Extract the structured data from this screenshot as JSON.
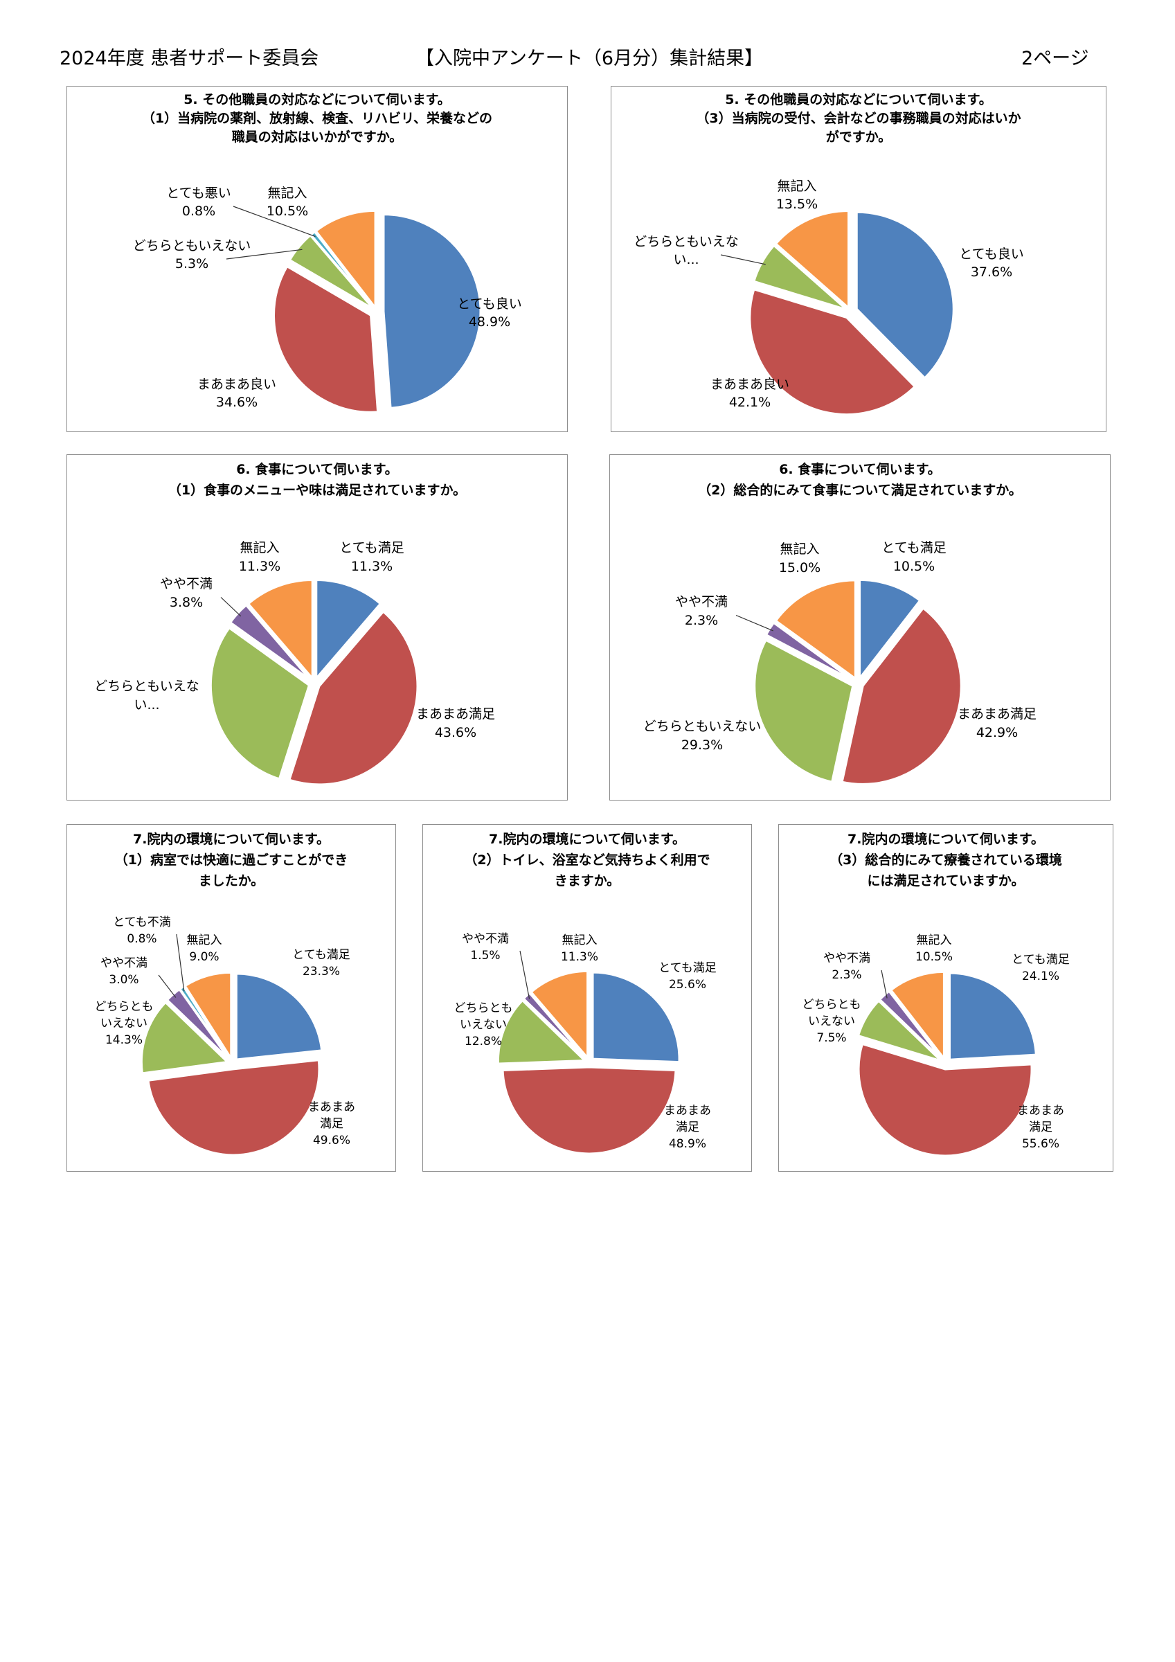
{
  "header": {
    "left": "2024年度 患者サポート委員会",
    "center": "【入院中アンケート（6月分）集計結果】",
    "right": "2ページ"
  },
  "colors": {
    "blue": "#4f81bd",
    "red": "#c0504d",
    "green": "#9bbb59",
    "purple": "#8064a2",
    "cyan": "#4bacc6",
    "orange": "#f79646"
  },
  "chart_data": [
    {
      "type": "pie",
      "title": "5. その他職員の対応などについて伺います。\n（1）当病院の薬剤、放射線、検査、リハビリ、栄養などの\n職員の対応はいかがですか。",
      "slices": [
        {
          "label": "とても良い",
          "value": 48.9,
          "display": "48.9%",
          "color": "blue"
        },
        {
          "label": "まあまあ良い",
          "value": 34.6,
          "display": "34.6%",
          "color": "red"
        },
        {
          "label": "どちらともいえない",
          "value": 5.3,
          "display": "5.3%",
          "color": "green"
        },
        {
          "label": "とても悪い",
          "value": 0.8,
          "display": "0.8%",
          "color": "cyan"
        },
        {
          "label": "無記入",
          "value": 10.5,
          "display": "10.5%",
          "color": "orange"
        }
      ]
    },
    {
      "type": "pie",
      "title": "5. その他職員の対応などについて伺います。\n（3）当病院の受付、会計などの事務職員の対応はいか\nがですか。",
      "slices": [
        {
          "label": "とても良い",
          "value": 37.6,
          "display": "37.6%",
          "color": "blue"
        },
        {
          "label": "まあまあ良い",
          "value": 42.1,
          "display": "42.1%",
          "color": "red"
        },
        {
          "label": "どちらともいえな\nい...",
          "value": 6.8,
          "display": "",
          "color": "green"
        },
        {
          "label": "無記入",
          "value": 13.5,
          "display": "13.5%",
          "color": "orange"
        }
      ]
    },
    {
      "type": "pie",
      "title": "6. 食事について伺います。\n（1）食事のメニューや味は満足されていますか。",
      "slices": [
        {
          "label": "とても満足",
          "value": 11.3,
          "display": "11.3%",
          "color": "blue"
        },
        {
          "label": "まあまあ満足",
          "value": 43.6,
          "display": "43.6%",
          "color": "red"
        },
        {
          "label": "どちらともいえな\nい...",
          "value": 30.0,
          "display": "",
          "color": "green"
        },
        {
          "label": "やや不満",
          "value": 3.8,
          "display": "3.8%",
          "color": "purple"
        },
        {
          "label": "無記入",
          "value": 11.3,
          "display": "11.3%",
          "color": "orange"
        }
      ]
    },
    {
      "type": "pie",
      "title": "6. 食事について伺います。\n（2）総合的にみて食事について満足されていますか。",
      "slices": [
        {
          "label": "とても満足",
          "value": 10.5,
          "display": "10.5%",
          "color": "blue"
        },
        {
          "label": "まあまあ満足",
          "value": 42.9,
          "display": "42.9%",
          "color": "red"
        },
        {
          "label": "どちらともいえない",
          "value": 29.3,
          "display": "29.3%",
          "color": "green"
        },
        {
          "label": "やや不満",
          "value": 2.3,
          "display": "2.3%",
          "color": "purple"
        },
        {
          "label": "無記入",
          "value": 15.0,
          "display": "15.0%",
          "color": "orange"
        }
      ]
    },
    {
      "type": "pie",
      "title": "7.院内の環境について伺います。\n（1）病室では快適に過ごすことができ\nましたか。",
      "slices": [
        {
          "label": "とても満足",
          "value": 23.3,
          "display": "23.3%",
          "color": "blue"
        },
        {
          "label": "まあまあ\n満足",
          "value": 49.6,
          "display": "49.6%",
          "color": "red"
        },
        {
          "label": "どちらとも\nいえない",
          "value": 14.3,
          "display": "14.3%",
          "color": "green"
        },
        {
          "label": "やや不満",
          "value": 3.0,
          "display": "3.0%",
          "color": "purple"
        },
        {
          "label": "とても不満",
          "value": 0.8,
          "display": "0.8%",
          "color": "cyan"
        },
        {
          "label": "無記入",
          "value": 9.0,
          "display": "9.0%",
          "color": "orange"
        }
      ]
    },
    {
      "type": "pie",
      "title": "7.院内の環境について伺います。\n（2）トイレ、浴室など気持ちよく利用で\nきますか。",
      "slices": [
        {
          "label": "とても満足",
          "value": 25.6,
          "display": "25.6%",
          "color": "blue"
        },
        {
          "label": "まあまあ\n満足",
          "value": 48.9,
          "display": "48.9%",
          "color": "red"
        },
        {
          "label": "どちらとも\nいえない",
          "value": 12.8,
          "display": "12.8%",
          "color": "green"
        },
        {
          "label": "やや不満",
          "value": 1.5,
          "display": "1.5%",
          "color": "purple"
        },
        {
          "label": "無記入",
          "value": 11.3,
          "display": "11.3%",
          "color": "orange"
        }
      ]
    },
    {
      "type": "pie",
      "title": "7.院内の環境について伺います。\n（3）総合的にみて療養されている環境\nには満足されていますか。",
      "slices": [
        {
          "label": "とても満足",
          "value": 24.1,
          "display": "24.1%",
          "color": "blue"
        },
        {
          "label": "まあまあ\n満足",
          "value": 55.6,
          "display": "55.6%",
          "color": "red"
        },
        {
          "label": "どちらとも\nいえない",
          "value": 7.5,
          "display": "7.5%",
          "color": "green"
        },
        {
          "label": "やや不満",
          "value": 2.3,
          "display": "2.3%",
          "color": "purple"
        },
        {
          "label": "無記入",
          "value": 10.5,
          "display": "10.5%",
          "color": "orange"
        }
      ]
    }
  ]
}
